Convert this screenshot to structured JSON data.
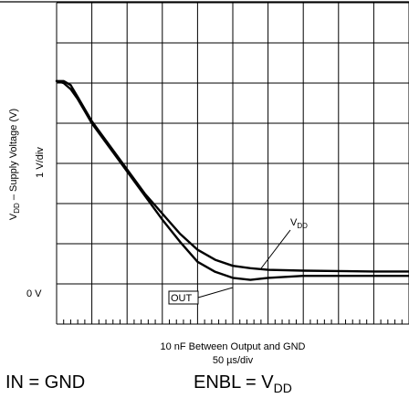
{
  "chart_data": {
    "type": "line",
    "title": "",
    "xlabel": "10 nF Between Output and GND",
    "xscale": "50 µs/div",
    "ylabel_main": "V",
    "ylabel_sub": "DD",
    "ylabel_rest": " – Supply Voltage (V)",
    "yscale": "1 V/div",
    "zero_label": "0 V",
    "grid": true,
    "divisions": {
      "x": 10,
      "y": 8
    },
    "xlim": [
      0,
      500
    ],
    "ylim": [
      -1.25,
      6.75
    ],
    "x_unit": "µs",
    "y_unit": "V",
    "series": [
      {
        "name": "VDD",
        "label_main": "V",
        "label_sub": "DD",
        "x": [
          0,
          10,
          20,
          30,
          40,
          50,
          75,
          100,
          125,
          150,
          175,
          200,
          225,
          250,
          275,
          300,
          350,
          400,
          450,
          500
        ],
        "y": [
          4.8,
          4.8,
          4.7,
          4.4,
          4.1,
          3.8,
          3.2,
          2.6,
          2.0,
          1.5,
          1.0,
          0.6,
          0.35,
          0.2,
          0.14,
          0.1,
          0.08,
          0.07,
          0.06,
          0.06
        ]
      },
      {
        "name": "OUT",
        "label_main": "OUT",
        "label_sub": "",
        "x": [
          0,
          10,
          20,
          30,
          40,
          50,
          75,
          100,
          125,
          150,
          175,
          200,
          225,
          250,
          275,
          300,
          350,
          400,
          450,
          500
        ],
        "y": [
          4.8,
          4.75,
          4.6,
          4.35,
          4.05,
          3.75,
          3.15,
          2.55,
          1.95,
          1.35,
          0.8,
          0.3,
          0.05,
          -0.1,
          -0.15,
          -0.1,
          -0.05,
          -0.05,
          -0.05,
          -0.05
        ]
      }
    ]
  },
  "captions": {
    "in_label": "IN = GND",
    "enbl_main": "ENBL = V",
    "enbl_sub": "DD"
  }
}
